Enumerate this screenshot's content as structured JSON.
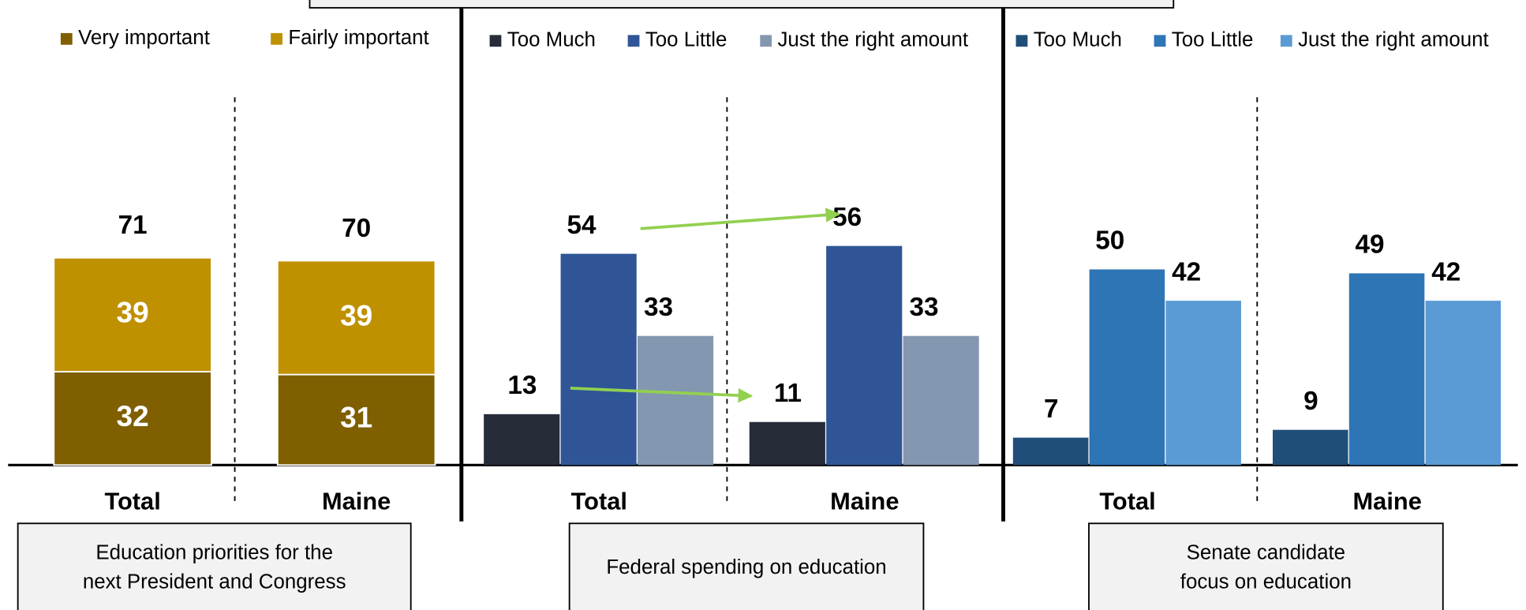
{
  "chart_data": [
    {
      "type": "stacked_bar",
      "categories": [
        "Total",
        "Maine"
      ],
      "series": [
        {
          "name": "Very important",
          "color": "#7f5f00",
          "values": [
            32,
            31
          ]
        },
        {
          "name": "Fairly important",
          "color": "#bf9000",
          "values": [
            39,
            39
          ]
        }
      ],
      "totals": [
        71,
        70
      ],
      "ylim": [
        0,
        126
      ],
      "caption": [
        "Education priorities for the",
        "next President and Congress"
      ]
    },
    {
      "type": "grouped_bar",
      "categories": [
        "Total",
        "Maine"
      ],
      "series": [
        {
          "name": "Too Much",
          "color": "#262c38",
          "values": [
            13,
            11
          ]
        },
        {
          "name": "Too Little",
          "color": "#2f5597",
          "values": [
            54,
            56
          ]
        },
        {
          "name": "Just the right amount",
          "color": "#8497b0",
          "values": [
            33,
            33
          ]
        }
      ],
      "ylim": [
        0,
        94
      ],
      "caption": [
        "Federal spending on education"
      ]
    },
    {
      "type": "grouped_bar",
      "categories": [
        "Total",
        "Maine"
      ],
      "series": [
        {
          "name": "Too Much",
          "color": "#1f4e79",
          "values": [
            7,
            9
          ]
        },
        {
          "name": "Too Little",
          "color": "#2e75b6",
          "values": [
            50,
            49
          ]
        },
        {
          "name": "Just the right amount",
          "color": "#5b9bd5",
          "values": [
            42,
            42
          ]
        }
      ],
      "ylim": [
        0,
        94
      ],
      "caption": [
        "Senate candidate",
        "focus on education"
      ]
    }
  ]
}
